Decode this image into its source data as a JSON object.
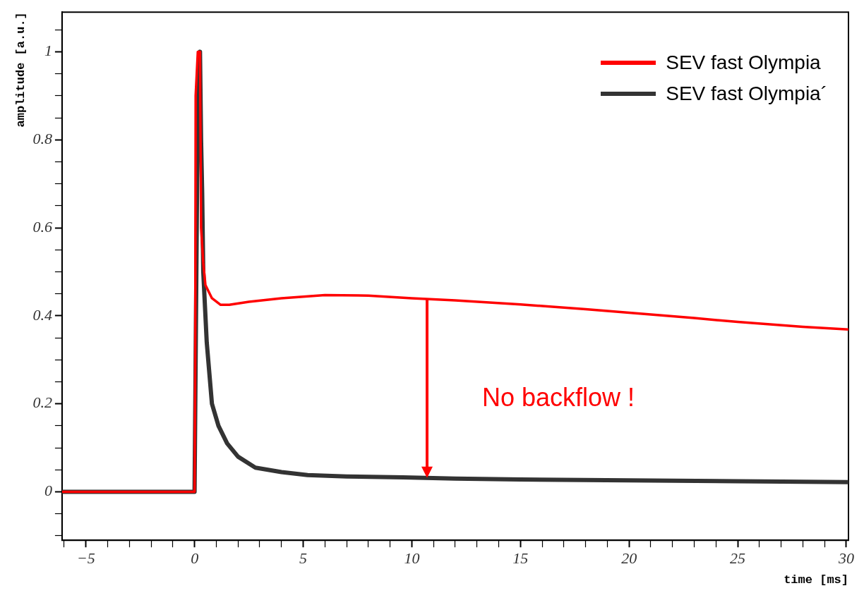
{
  "chart_data": {
    "type": "line",
    "xlabel": "time [ms]",
    "ylabel": "amplitude [a.u.]",
    "legend": "top right",
    "grid": false,
    "marker": "none",
    "line_style": "solid",
    "xlim": [
      -6.1,
      30.1
    ],
    "ylim": [
      -0.11,
      1.09
    ],
    "xticks": [
      {
        "value": -6,
        "label": null
      },
      {
        "value": -5,
        "label": "−5"
      },
      {
        "value": -4,
        "label": null
      },
      {
        "value": -3,
        "label": null
      },
      {
        "value": -2,
        "label": null
      },
      {
        "value": -1,
        "label": null
      },
      0,
      {
        "value": 1,
        "label": null
      },
      {
        "value": 2,
        "label": null
      },
      {
        "value": 3,
        "label": null
      },
      {
        "value": 4,
        "label": null
      },
      5,
      {
        "value": 6,
        "label": null
      },
      {
        "value": 7,
        "label": null
      },
      {
        "value": 8,
        "label": null
      },
      {
        "value": 9,
        "label": null
      },
      10,
      {
        "value": 11,
        "label": null
      },
      {
        "value": 12,
        "label": null
      },
      {
        "value": 13,
        "label": null
      },
      {
        "value": 14,
        "label": null
      },
      15,
      {
        "value": 16,
        "label": null
      },
      {
        "value": 17,
        "label": null
      },
      {
        "value": 18,
        "label": null
      },
      {
        "value": 19,
        "label": null
      },
      20,
      {
        "value": 21,
        "label": null
      },
      {
        "value": 22,
        "label": null
      },
      {
        "value": 23,
        "label": null
      },
      {
        "value": 24,
        "label": null
      },
      25,
      {
        "value": 26,
        "label": null
      },
      {
        "value": 27,
        "label": null
      },
      {
        "value": 28,
        "label": null
      },
      {
        "value": 29,
        "label": null
      },
      30
    ],
    "yticks": [
      {
        "value": -0.1,
        "label": null
      },
      {
        "value": -0.05,
        "label": null
      },
      0,
      {
        "value": 0.05,
        "label": null
      },
      {
        "value": 0.1,
        "label": null
      },
      {
        "value": 0.15,
        "label": null
      },
      0.2,
      {
        "value": 0.25,
        "label": null
      },
      {
        "value": 0.3,
        "label": null
      },
      {
        "value": 0.35,
        "label": null
      },
      0.4,
      {
        "value": 0.45,
        "label": null
      },
      {
        "value": 0.5,
        "label": null
      },
      {
        "value": 0.55,
        "label": null
      },
      0.6,
      {
        "value": 0.65,
        "label": null
      },
      {
        "value": 0.7,
        "label": null
      },
      {
        "value": 0.75,
        "label": null
      },
      0.8,
      {
        "value": 0.85,
        "label": null
      },
      {
        "value": 0.9,
        "label": null
      },
      {
        "value": 0.95,
        "label": null
      },
      1,
      {
        "value": 1.05,
        "label": null
      }
    ],
    "series": [
      {
        "name": "SEV fast Olympia",
        "color": "#ff0000",
        "x": [
          -6.1,
          -3,
          0,
          0.03,
          0.05,
          0.1,
          0.15,
          0.25,
          0.3,
          0.4,
          0.5,
          0.8,
          1.2,
          1.6,
          2.5,
          4,
          6,
          8,
          10,
          12,
          15,
          18,
          20,
          23,
          25,
          28,
          30.1
        ],
        "values": [
          0,
          0,
          0,
          0.29,
          0.9,
          0.95,
          1.0,
          1.0,
          0.6,
          0.52,
          0.47,
          0.44,
          0.425,
          0.425,
          0.432,
          0.44,
          0.447,
          0.446,
          0.44,
          0.435,
          0.426,
          0.415,
          0.407,
          0.395,
          0.386,
          0.375,
          0.369
        ]
      },
      {
        "name": "SEV fast Olympia´",
        "color": "#333333",
        "x": [
          -6.1,
          0,
          0.05,
          0.15,
          0.25,
          0.3,
          0.35,
          0.4,
          0.56,
          0.8,
          1.1,
          1.5,
          2,
          2.8,
          4,
          5.2,
          7,
          9.6,
          12,
          15,
          20,
          25,
          30.1
        ],
        "values": [
          0,
          0,
          0.3,
          0.9,
          1.0,
          0.8,
          0.68,
          0.5,
          0.34,
          0.2,
          0.15,
          0.11,
          0.08,
          0.055,
          0.045,
          0.038,
          0.035,
          0.033,
          0.03,
          0.028,
          0.026,
          0.024,
          0.022
        ]
      }
    ],
    "annotations": [
      "No backflow !"
    ]
  }
}
